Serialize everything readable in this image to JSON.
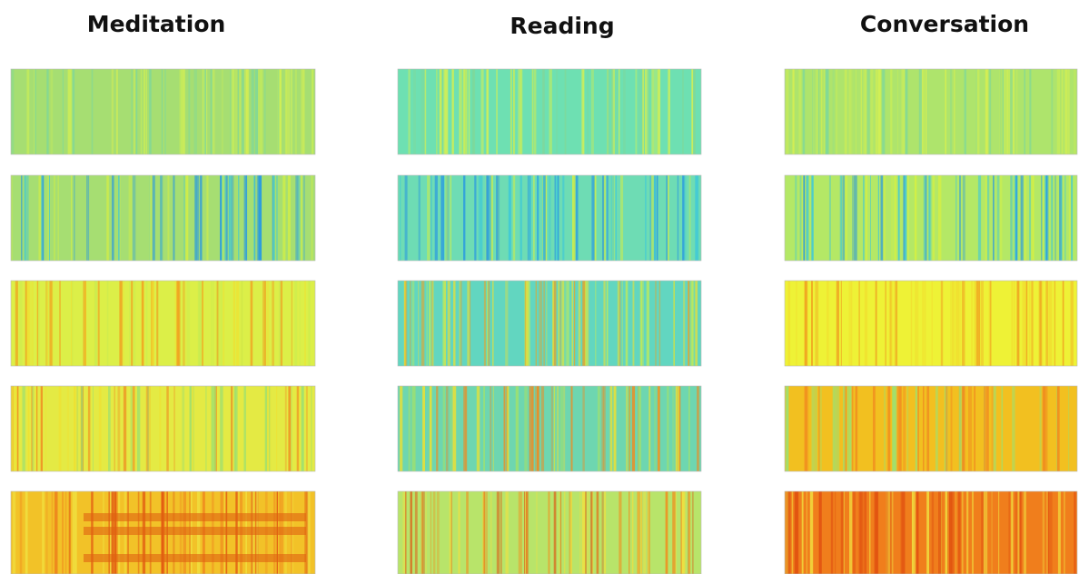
{
  "columns": [
    {
      "title": "Meditation"
    },
    {
      "title": "Reading"
    },
    {
      "title": "Conversation"
    }
  ]
}
